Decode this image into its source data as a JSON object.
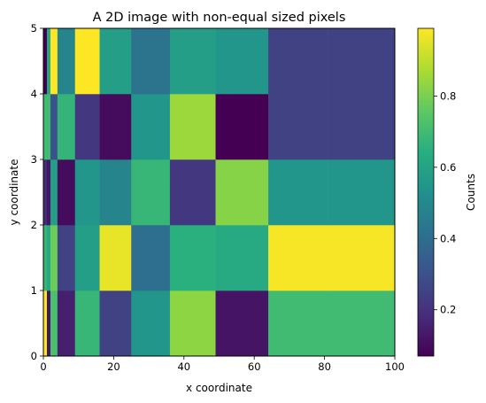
{
  "chart_data": {
    "type": "heatmap",
    "title": "A 2D image with non-equal sized pixels",
    "xlabel": "x coordinate",
    "ylabel": "y coordinate",
    "colorbar_label": "Counts",
    "colormap": "viridis",
    "xlim": [
      0,
      100
    ],
    "ylim": [
      0,
      5
    ],
    "clim": [
      0.07,
      0.99
    ],
    "x_edges": [
      0,
      1,
      2,
      4,
      9,
      16,
      25,
      36,
      49,
      64,
      81,
      100
    ],
    "y_edges": [
      0,
      1,
      2,
      3,
      4,
      5
    ],
    "x_ticks": [
      0,
      20,
      40,
      60,
      80,
      100
    ],
    "x_tick_labels": [
      "0",
      "20",
      "40",
      "60",
      "80",
      "100"
    ],
    "y_ticks": [
      0,
      1,
      2,
      3,
      4,
      5
    ],
    "y_tick_labels": [
      "0",
      "1",
      "2",
      "3",
      "4",
      "5"
    ],
    "colorbar_ticks": [
      0.2,
      0.4,
      0.6,
      0.8
    ],
    "colorbar_tick_labels": [
      "0.2",
      "0.4",
      "0.6",
      "0.8"
    ],
    "values": [
      [
        0.99,
        0.12,
        0.72,
        0.15,
        0.68,
        0.25,
        0.55,
        0.83,
        0.12,
        0.7,
        0.7
      ],
      [
        0.68,
        0.62,
        0.78,
        0.25,
        0.58,
        0.96,
        0.4,
        0.65,
        0.63,
        0.98,
        0.98
      ],
      [
        0.18,
        0.12,
        0.58,
        0.1,
        0.55,
        0.48,
        0.68,
        0.22,
        0.82,
        0.55,
        0.55
      ],
      [
        0.7,
        0.7,
        0.3,
        0.67,
        0.22,
        0.1,
        0.55,
        0.85,
        0.07,
        0.25,
        0.25
      ],
      [
        0.07,
        0.62,
        0.99,
        0.48,
        0.99,
        0.58,
        0.42,
        0.58,
        0.55,
        0.25,
        0.25
      ]
    ]
  }
}
